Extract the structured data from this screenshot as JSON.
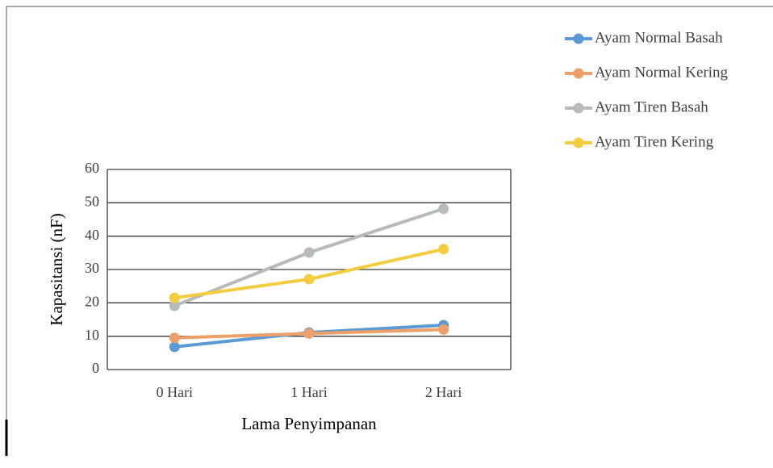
{
  "chart_data": {
    "type": "line",
    "x_label": "Lama Penyimpanan",
    "y_label": "Kapasitansi (nF)",
    "categories": [
      "0 Hari",
      "1 Hari",
      "2 Hari"
    ],
    "series": [
      {
        "name": "Ayam Normal Basah",
        "color": "#5b9bd5",
        "values": [
          6.8,
          11.1,
          13.3
        ]
      },
      {
        "name": "Ayam Normal Kering",
        "color": "#eda06a",
        "values": [
          9.5,
          10.8,
          12.0
        ]
      },
      {
        "name": "Ayam Tiren Basah",
        "color": "#b7bbb8",
        "values": [
          19.1,
          35.1,
          48.2
        ]
      },
      {
        "name": "Ayam Tiren Kering",
        "color": "#f3cc3f",
        "values": [
          21.5,
          27.1,
          36.1
        ]
      }
    ],
    "ylim": [
      0,
      60
    ],
    "yticks": [
      0,
      10,
      20,
      30,
      40,
      50,
      60
    ],
    "grid": true,
    "legend": "top-right"
  }
}
